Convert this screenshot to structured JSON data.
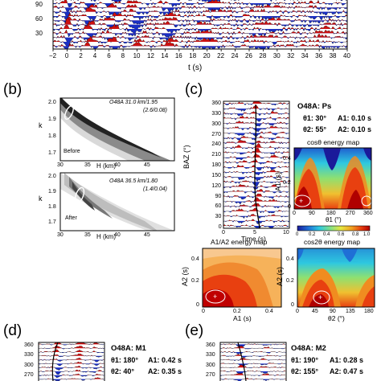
{
  "panel_a": {
    "y_ticks": [
      "90",
      "60",
      "30"
    ],
    "x_ticks": [
      "−2",
      "0",
      "2",
      "4",
      "6",
      "8",
      "10",
      "12",
      "14",
      "16",
      "18",
      "20",
      "22",
      "24",
      "26",
      "28",
      "30",
      "32",
      "34",
      "36",
      "38",
      "40"
    ],
    "x_label": "t (s)"
  },
  "panel_b": {
    "label": "(b)",
    "before": {
      "annotation_line1": "O48A 31.0 km/1.95",
      "annotation_line2": "(2.6/0.08)",
      "state": "Before",
      "y_label": "k",
      "y_ticks": [
        "2.0",
        "1.9",
        "1.8",
        "1.7"
      ],
      "x_ticks": [
        "30",
        "35",
        "40",
        "45"
      ],
      "x_label": "H (km)"
    },
    "after": {
      "annotation_line1": "O48A 36.5 km/1.80",
      "annotation_line2": "(1.4/0.04)",
      "state": "After",
      "y_label": "k",
      "y_ticks": [
        "2.0",
        "1.9",
        "1.8",
        "1.7"
      ],
      "x_ticks": [
        "30",
        "35",
        "40",
        "45"
      ],
      "x_label": "H (km)"
    }
  },
  "panel_c": {
    "label": "(c)",
    "traces": {
      "y_label": "BAZ (°)",
      "y_ticks": [
        "360",
        "330",
        "300",
        "270",
        "240",
        "210",
        "180",
        "150",
        "120",
        "90",
        "60",
        "30",
        "0"
      ],
      "x_ticks": [
        "0",
        "5",
        "10"
      ],
      "x_label": "Time (s)"
    },
    "title": "O48A: Ps",
    "theta1": "θ1: 30°",
    "a1": "A1: 0.10 s",
    "theta2": "θ2: 55°",
    "a2": "A2: 0.10 s",
    "cos_map": {
      "title": "cosθ energy map",
      "y_label": "A1 (s)",
      "y_ticks": [
        "0.4",
        "0.2",
        "0"
      ],
      "x_ticks": [
        "0",
        "90",
        "180",
        "270",
        "360"
      ],
      "x_label": "θ1 (°)"
    },
    "colorbar_ticks": [
      "0",
      "0.2",
      "0.4",
      "0.6",
      "0.8",
      "1.0"
    ],
    "a1a2_map": {
      "title": "A1/A2 energy map",
      "y_label": "A2 (s)",
      "y_ticks": [
        "0.4",
        "0.2",
        "0"
      ],
      "x_ticks": [
        "0",
        "0.2",
        "0.4"
      ],
      "x_label": "A1 (s)"
    },
    "cos2_map": {
      "title": "cos2θ energy map",
      "y_label": "A2 (s)",
      "y_ticks": [
        "0.4",
        "0.2",
        "0"
      ],
      "x_ticks": [
        "0",
        "45",
        "90",
        "135",
        "180"
      ],
      "x_label": "θ2 (°)"
    }
  },
  "panel_d": {
    "label": "(d)",
    "y_ticks": [
      "360",
      "330",
      "300",
      "270"
    ],
    "title": "O48A: M1",
    "theta1": "θ1: 180°",
    "a1": "A1: 0.42 s",
    "theta2": "θ2: 40°",
    "a2": "A2: 0.35 s"
  },
  "panel_e": {
    "label": "(e)",
    "y_ticks": [
      "360",
      "330",
      "300",
      "270"
    ],
    "title": "O48A: M2",
    "theta1": "θ1: 190°",
    "a1": "A1: 0.28 s",
    "theta2": "θ2: 155°",
    "a2": "A2: 0.47 s"
  },
  "colors": {
    "positive": "#cc1111",
    "negative": "#1a2fc4",
    "cmap": [
      "#1a1a9a",
      "#1f6fd6",
      "#2ec8e0",
      "#7fe08a",
      "#e6e640",
      "#f0a020",
      "#e84010",
      "#b00000"
    ]
  }
}
